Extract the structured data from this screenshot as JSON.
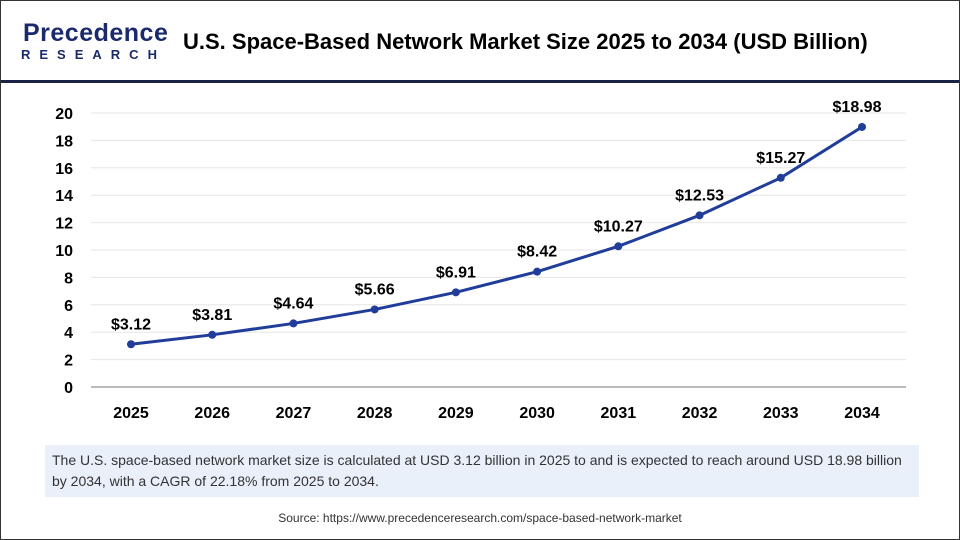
{
  "logo": {
    "line1": "Precedence",
    "line2": "RESEARCH"
  },
  "title": "U.S. Space-Based Network Market Size 2025 to 2034 (USD Billion)",
  "note": "The U.S. space-based network market size is calculated at USD 3.12 billion in 2025 to and is expected to reach around USD 18.98 billion by 2034, with a CAGR of 22.18% from 2025 to 2034.",
  "source": "Source: https://www.precedenceresearch.com/space-based-network-market",
  "chart_data": {
    "type": "line",
    "categories": [
      "2025",
      "2026",
      "2027",
      "2028",
      "2029",
      "2030",
      "2031",
      "2032",
      "2033",
      "2034"
    ],
    "series": [
      {
        "values": [
          3.12,
          3.81,
          4.64,
          5.66,
          6.91,
          8.42,
          10.27,
          12.53,
          15.27,
          18.98
        ],
        "labels": [
          "$3.12",
          "$3.81",
          "$4.64",
          "$5.66",
          "$6.91",
          "$8.42",
          "$10.27",
          "$12.53",
          "$15.27",
          "$18.98"
        ],
        "color": "#1f3d99"
      }
    ],
    "ylim": [
      0,
      20
    ],
    "yticks": [
      "0",
      "2",
      "4",
      "6",
      "8",
      "10",
      "12",
      "14",
      "16",
      "18",
      "20"
    ],
    "grid": true,
    "xlabel": "",
    "ylabel": ""
  }
}
